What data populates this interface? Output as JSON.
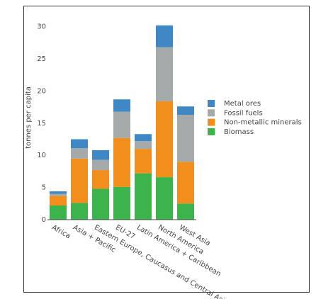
{
  "chart_data": {
    "type": "stacked_bar",
    "ylabel": "tonnes per capita",
    "categories": [
      "Africa",
      "Asia + Pacific",
      "Eastern Europe, Caucasus and Central Asia",
      "EU-27",
      "Latin America + Caribbean",
      "North America",
      "West Asia"
    ],
    "series": [
      {
        "name": "Metal ores",
        "color": "#3f88c5",
        "values": [
          0.4,
          1.4,
          1.5,
          1.9,
          1.1,
          3.4,
          1.3
        ]
      },
      {
        "name": "Fossil fuels",
        "color": "#a3aaa9",
        "values": [
          0.3,
          1.6,
          1.6,
          4.1,
          1.2,
          8.4,
          7.3
        ]
      },
      {
        "name": "Non-metallic minerals",
        "color": "#f28e1c",
        "values": [
          1.5,
          6.9,
          2.9,
          7.6,
          3.8,
          11.8,
          6.5
        ]
      },
      {
        "name": "Biomass",
        "color": "#3cb44b",
        "values": [
          2.2,
          2.6,
          4.8,
          5.1,
          7.2,
          6.6,
          2.5
        ]
      }
    ],
    "ylim": [
      0,
      31.5
    ],
    "yticks": [
      0,
      5,
      10,
      15,
      20,
      25,
      30
    ],
    "grid": false
  }
}
